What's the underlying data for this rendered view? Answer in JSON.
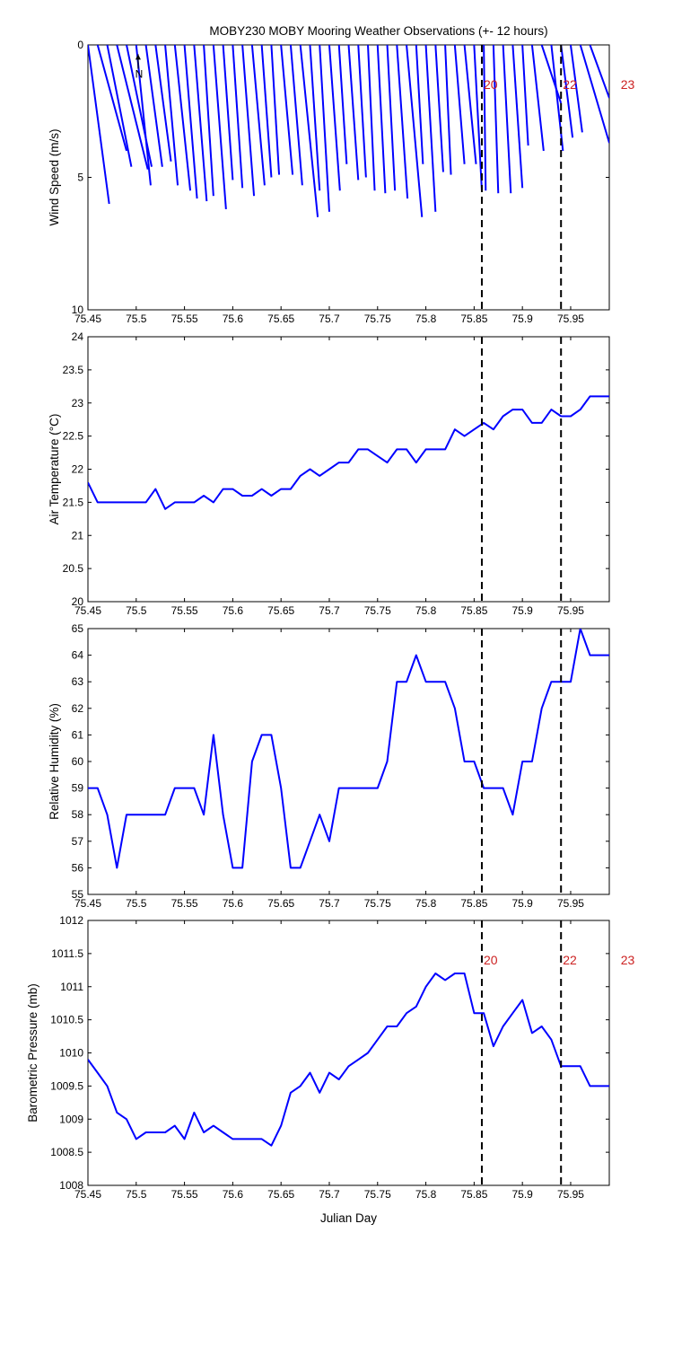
{
  "title": "MOBY230 MOBY Mooring Weather Observations (+- 12 hours)",
  "colors": {
    "series": "#0000ff",
    "marker_label": "#cc2222",
    "axis": "#000000"
  },
  "markers": [
    {
      "x": 75.858,
      "label": "20"
    },
    {
      "x": 75.94,
      "label": "22"
    },
    {
      "x": 76.0,
      "label": "23"
    }
  ],
  "north_label": "N",
  "chart_data": [
    {
      "type": "wind-vectors",
      "ylabel": "Wind Speed (m/s)",
      "xlabel": "Julian Day",
      "xlim": [
        75.45,
        75.99
      ],
      "ylim": [
        0,
        10
      ],
      "y_inverted": true,
      "xticks": [
        75.45,
        75.5,
        75.55,
        75.6,
        75.65,
        75.7,
        75.75,
        75.8,
        75.85,
        75.9,
        75.95
      ],
      "yticks": [
        0,
        5,
        10
      ],
      "vectors": [
        {
          "x": 75.45,
          "end_x": 75.472,
          "end_y": 6.0
        },
        {
          "x": 75.46,
          "end_x": 75.49,
          "end_y": 4.0
        },
        {
          "x": 75.47,
          "end_x": 75.495,
          "end_y": 4.6
        },
        {
          "x": 75.48,
          "end_x": 75.512,
          "end_y": 4.7
        },
        {
          "x": 75.49,
          "end_x": 75.516,
          "end_y": 4.6
        },
        {
          "x": 75.5,
          "end_x": 75.515,
          "end_y": 5.3
        },
        {
          "x": 75.51,
          "end_x": 75.527,
          "end_y": 4.6
        },
        {
          "x": 75.52,
          "end_x": 75.536,
          "end_y": 4.4
        },
        {
          "x": 75.53,
          "end_x": 75.543,
          "end_y": 5.3
        },
        {
          "x": 75.54,
          "end_x": 75.556,
          "end_y": 5.5
        },
        {
          "x": 75.55,
          "end_x": 75.563,
          "end_y": 5.8
        },
        {
          "x": 75.56,
          "end_x": 75.573,
          "end_y": 5.9
        },
        {
          "x": 75.57,
          "end_x": 75.58,
          "end_y": 5.7
        },
        {
          "x": 75.58,
          "end_x": 75.593,
          "end_y": 6.2
        },
        {
          "x": 75.59,
          "end_x": 75.6,
          "end_y": 5.1
        },
        {
          "x": 75.6,
          "end_x": 75.61,
          "end_y": 5.4
        },
        {
          "x": 75.61,
          "end_x": 75.622,
          "end_y": 5.7
        },
        {
          "x": 75.62,
          "end_x": 75.633,
          "end_y": 5.3
        },
        {
          "x": 75.63,
          "end_x": 75.64,
          "end_y": 5.0
        },
        {
          "x": 75.64,
          "end_x": 75.648,
          "end_y": 4.9
        },
        {
          "x": 75.65,
          "end_x": 75.662,
          "end_y": 4.9
        },
        {
          "x": 75.66,
          "end_x": 75.672,
          "end_y": 5.3
        },
        {
          "x": 75.67,
          "end_x": 75.688,
          "end_y": 6.5
        },
        {
          "x": 75.68,
          "end_x": 75.69,
          "end_y": 5.5
        },
        {
          "x": 75.69,
          "end_x": 75.7,
          "end_y": 6.3
        },
        {
          "x": 75.7,
          "end_x": 75.711,
          "end_y": 5.5
        },
        {
          "x": 75.71,
          "end_x": 75.718,
          "end_y": 4.5
        },
        {
          "x": 75.72,
          "end_x": 75.73,
          "end_y": 5.1
        },
        {
          "x": 75.73,
          "end_x": 75.738,
          "end_y": 5.0
        },
        {
          "x": 75.74,
          "end_x": 75.747,
          "end_y": 5.5
        },
        {
          "x": 75.75,
          "end_x": 75.758,
          "end_y": 5.6
        },
        {
          "x": 75.76,
          "end_x": 75.768,
          "end_y": 5.5
        },
        {
          "x": 75.77,
          "end_x": 75.781,
          "end_y": 5.8
        },
        {
          "x": 75.78,
          "end_x": 75.796,
          "end_y": 6.5
        },
        {
          "x": 75.79,
          "end_x": 75.797,
          "end_y": 4.5
        },
        {
          "x": 75.8,
          "end_x": 75.81,
          "end_y": 6.3
        },
        {
          "x": 75.81,
          "end_x": 75.818,
          "end_y": 4.8
        },
        {
          "x": 75.82,
          "end_x": 75.826,
          "end_y": 4.9
        },
        {
          "x": 75.83,
          "end_x": 75.84,
          "end_y": 4.5
        },
        {
          "x": 75.84,
          "end_x": 75.852,
          "end_y": 4.5
        },
        {
          "x": 75.85,
          "end_x": 75.858,
          "end_y": 5.5
        },
        {
          "x": 75.86,
          "end_x": 75.862,
          "end_y": 5.5
        },
        {
          "x": 75.87,
          "end_x": 75.875,
          "end_y": 5.6
        },
        {
          "x": 75.88,
          "end_x": 75.888,
          "end_y": 5.6
        },
        {
          "x": 75.89,
          "end_x": 75.9,
          "end_y": 5.4
        },
        {
          "x": 75.9,
          "end_x": 75.906,
          "end_y": 3.8
        },
        {
          "x": 75.91,
          "end_x": 75.922,
          "end_y": 4.0
        },
        {
          "x": 75.92,
          "end_x": 75.94,
          "end_y": 2.2
        },
        {
          "x": 75.93,
          "end_x": 75.942,
          "end_y": 4.0
        },
        {
          "x": 75.94,
          "end_x": 75.952,
          "end_y": 3.5
        },
        {
          "x": 75.95,
          "end_x": 75.962,
          "end_y": 3.3
        },
        {
          "x": 75.96,
          "end_x": 75.99,
          "end_y": 3.7
        },
        {
          "x": 75.97,
          "end_x": 75.99,
          "end_y": 2.0
        }
      ],
      "north_arrow": {
        "x": 75.502,
        "length": 0.9
      }
    },
    {
      "type": "line",
      "ylabel": "Air Temperature (°C)",
      "xlim": [
        75.45,
        75.99
      ],
      "ylim": [
        20,
        24
      ],
      "xticks": [
        75.45,
        75.5,
        75.55,
        75.6,
        75.65,
        75.7,
        75.75,
        75.8,
        75.85,
        75.9,
        75.95
      ],
      "yticks": [
        20,
        20.5,
        21,
        21.5,
        22,
        22.5,
        23,
        23.5,
        24
      ],
      "x": [
        75.45,
        75.46,
        75.47,
        75.48,
        75.49,
        75.5,
        75.51,
        75.52,
        75.53,
        75.54,
        75.55,
        75.56,
        75.57,
        75.58,
        75.59,
        75.6,
        75.61,
        75.62,
        75.63,
        75.64,
        75.65,
        75.66,
        75.67,
        75.68,
        75.69,
        75.7,
        75.71,
        75.72,
        75.73,
        75.74,
        75.75,
        75.76,
        75.77,
        75.78,
        75.79,
        75.8,
        75.81,
        75.82,
        75.83,
        75.84,
        75.85,
        75.86,
        75.87,
        75.88,
        75.89,
        75.9,
        75.91,
        75.92,
        75.93,
        75.94,
        75.95,
        75.96,
        75.97,
        75.98,
        75.99
      ],
      "y": [
        21.8,
        21.5,
        21.5,
        21.5,
        21.5,
        21.5,
        21.5,
        21.7,
        21.4,
        21.5,
        21.5,
        21.5,
        21.6,
        21.5,
        21.7,
        21.7,
        21.6,
        21.6,
        21.7,
        21.6,
        21.7,
        21.7,
        21.9,
        22.0,
        21.9,
        22.0,
        22.1,
        22.1,
        22.3,
        22.3,
        22.2,
        22.1,
        22.3,
        22.3,
        22.1,
        22.3,
        22.3,
        22.3,
        22.6,
        22.5,
        22.6,
        22.7,
        22.6,
        22.8,
        22.9,
        22.9,
        22.7,
        22.7,
        22.9,
        22.8,
        22.8,
        22.9,
        23.1,
        23.1,
        23.1
      ]
    },
    {
      "type": "line",
      "ylabel": "Relative Humidity (%)",
      "xlim": [
        75.45,
        75.99
      ],
      "ylim": [
        55,
        65
      ],
      "xticks": [
        75.45,
        75.5,
        75.55,
        75.6,
        75.65,
        75.7,
        75.75,
        75.8,
        75.85,
        75.9,
        75.95
      ],
      "yticks": [
        55,
        56,
        57,
        58,
        59,
        60,
        61,
        62,
        63,
        64,
        65
      ],
      "x": [
        75.45,
        75.46,
        75.47,
        75.48,
        75.49,
        75.5,
        75.51,
        75.52,
        75.53,
        75.54,
        75.55,
        75.56,
        75.57,
        75.58,
        75.59,
        75.6,
        75.61,
        75.62,
        75.63,
        75.64,
        75.65,
        75.66,
        75.67,
        75.68,
        75.69,
        75.7,
        75.71,
        75.72,
        75.73,
        75.74,
        75.75,
        75.76,
        75.77,
        75.78,
        75.79,
        75.8,
        75.81,
        75.82,
        75.83,
        75.84,
        75.85,
        75.86,
        75.87,
        75.88,
        75.89,
        75.9,
        75.91,
        75.92,
        75.93,
        75.94,
        75.95,
        75.96,
        75.97,
        75.98,
        75.99
      ],
      "y": [
        59,
        59,
        58,
        56,
        58,
        58,
        58,
        58,
        58,
        59,
        59,
        59,
        58,
        61,
        58,
        56,
        56,
        60,
        61,
        61,
        59,
        56,
        56,
        57,
        58,
        57,
        59,
        59,
        59,
        59,
        59,
        60,
        63,
        63,
        64,
        63,
        63,
        63,
        62,
        60,
        60,
        59,
        59,
        59,
        58,
        60,
        60,
        62,
        63,
        63,
        63,
        65,
        64,
        64,
        64
      ]
    },
    {
      "type": "line",
      "ylabel": "Barometric Pressure (mb)",
      "xlabel": "Julian Day",
      "xlim": [
        75.45,
        75.99
      ],
      "ylim": [
        1008,
        1012
      ],
      "xticks": [
        75.45,
        75.5,
        75.55,
        75.6,
        75.65,
        75.7,
        75.75,
        75.8,
        75.85,
        75.9,
        75.95
      ],
      "yticks": [
        1008,
        1008.5,
        1009,
        1009.5,
        1010,
        1010.5,
        1011,
        1011.5,
        1012
      ],
      "x": [
        75.45,
        75.46,
        75.47,
        75.48,
        75.49,
        75.5,
        75.51,
        75.52,
        75.53,
        75.54,
        75.55,
        75.56,
        75.57,
        75.58,
        75.59,
        75.6,
        75.61,
        75.62,
        75.63,
        75.64,
        75.65,
        75.66,
        75.67,
        75.68,
        75.69,
        75.7,
        75.71,
        75.72,
        75.73,
        75.74,
        75.75,
        75.76,
        75.77,
        75.78,
        75.79,
        75.8,
        75.81,
        75.82,
        75.83,
        75.84,
        75.85,
        75.86,
        75.87,
        75.88,
        75.89,
        75.9,
        75.91,
        75.92,
        75.93,
        75.94,
        75.95,
        75.96,
        75.97,
        75.98,
        75.99
      ],
      "y": [
        1009.9,
        1009.7,
        1009.5,
        1009.1,
        1009.0,
        1008.7,
        1008.8,
        1008.8,
        1008.8,
        1008.9,
        1008.7,
        1009.1,
        1008.8,
        1008.9,
        1008.8,
        1008.7,
        1008.7,
        1008.7,
        1008.7,
        1008.6,
        1008.9,
        1009.4,
        1009.5,
        1009.7,
        1009.4,
        1009.7,
        1009.6,
        1009.8,
        1009.9,
        1010.0,
        1010.2,
        1010.4,
        1010.4,
        1010.6,
        1010.7,
        1011.0,
        1011.2,
        1011.1,
        1011.2,
        1011.2,
        1010.6,
        1010.6,
        1010.1,
        1010.4,
        1010.6,
        1010.8,
        1010.3,
        1010.4,
        1010.2,
        1009.8,
        1009.8,
        1009.8,
        1009.5,
        1009.5,
        1009.5
      ]
    }
  ]
}
